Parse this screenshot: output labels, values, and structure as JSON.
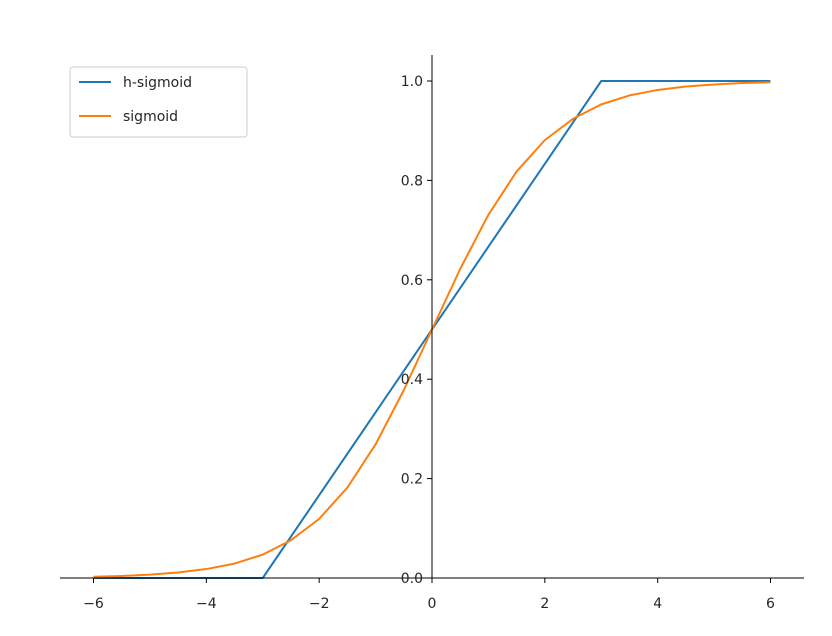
{
  "chart_data": {
    "type": "line",
    "title": "",
    "xlabel": "",
    "ylabel": "",
    "xlim": [
      -6.6,
      6.6
    ],
    "ylim": [
      0,
      1.05
    ],
    "grid": false,
    "legend_position": "top-left",
    "spines": "centered",
    "x_ticks": [
      -6,
      -4,
      -2,
      0,
      2,
      4,
      6
    ],
    "x_tick_labels": [
      "−6",
      "−4",
      "−2",
      "0",
      "2",
      "4",
      "6"
    ],
    "y_ticks": [
      0.0,
      0.2,
      0.4,
      0.6,
      0.8,
      1.0
    ],
    "y_tick_labels": [
      "0.0",
      "0.2",
      "0.4",
      "0.6",
      "0.8",
      "1.0"
    ],
    "series": [
      {
        "name": "h-sigmoid",
        "color": "#1f77b4",
        "x": [
          -6,
          -3,
          3,
          6
        ],
        "y": [
          0,
          0,
          1,
          1
        ]
      },
      {
        "name": "sigmoid",
        "color": "#ff7f0e",
        "x": [
          -6,
          -5.5,
          -5,
          -4.5,
          -4,
          -3.5,
          -3,
          -2.5,
          -2,
          -1.5,
          -1,
          -0.5,
          0,
          0.5,
          1,
          1.5,
          2,
          2.5,
          3,
          3.5,
          4,
          4.5,
          5,
          5.5,
          6
        ],
        "y": [
          0.0025,
          0.0041,
          0.0067,
          0.011,
          0.018,
          0.029,
          0.047,
          0.076,
          0.119,
          0.182,
          0.269,
          0.378,
          0.5,
          0.622,
          0.731,
          0.818,
          0.881,
          0.924,
          0.953,
          0.971,
          0.982,
          0.989,
          0.993,
          0.996,
          0.9975
        ]
      }
    ]
  }
}
